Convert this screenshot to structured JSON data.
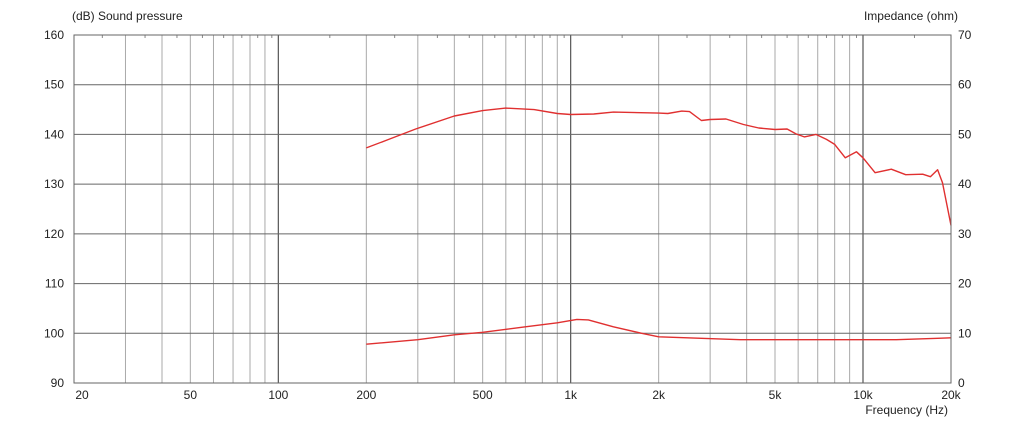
{
  "chart_data": {
    "type": "line",
    "left_axis_title": "(dB)  Sound pressure",
    "right_axis_title": "Impedance (ohm)",
    "xlabel": "Frequency  (Hz)",
    "x_scale": "log",
    "xlim": [
      20,
      20000
    ],
    "ylim_left": [
      90,
      160
    ],
    "ylim_right": [
      0,
      70
    ],
    "grid": true,
    "x_tick_labels": [
      {
        "value": 20,
        "label": "20"
      },
      {
        "value": 50,
        "label": "50"
      },
      {
        "value": 100,
        "label": "100"
      },
      {
        "value": 200,
        "label": "200"
      },
      {
        "value": 500,
        "label": "500"
      },
      {
        "value": 1000,
        "label": "1k"
      },
      {
        "value": 2000,
        "label": "2k"
      },
      {
        "value": 5000,
        "label": "5k"
      },
      {
        "value": 10000,
        "label": "10k"
      },
      {
        "value": 20000,
        "label": "20k"
      }
    ],
    "y_left_ticks": [
      "90",
      "100",
      "110",
      "120",
      "130",
      "140",
      "150",
      "160"
    ],
    "y_right_ticks": [
      "0",
      "10",
      "20",
      "30",
      "40",
      "50",
      "60",
      "70"
    ],
    "line_color": "#e03030",
    "series": [
      {
        "axis": "left",
        "x": [
          200,
          241,
          295,
          400,
          500,
          600,
          750,
          900,
          1000,
          1200,
          1400,
          2000,
          2150,
          2400,
          2550,
          2800,
          3000,
          3400,
          3900,
          4400,
          5000,
          5500,
          5900,
          6300,
          6900,
          7500,
          8000,
          8700,
          9500,
          10000,
          11000,
          12500,
          14000,
          16000,
          17000,
          18000,
          18700,
          20000
        ],
        "y": [
          137.3,
          139.1,
          141.1,
          143.7,
          144.8,
          145.3,
          145,
          144.2,
          144,
          144.1,
          144.5,
          144.3,
          144.2,
          144.7,
          144.6,
          142.8,
          143,
          143.1,
          142,
          141.3,
          141,
          141.1,
          140.1,
          139.5,
          140,
          139,
          138,
          135.3,
          136.5,
          135.3,
          132.3,
          133,
          131.9,
          132,
          131.5,
          132.9,
          130.3,
          121.7
        ]
      },
      {
        "axis": "right",
        "x": [
          200,
          300,
          400,
          500,
          700,
          900,
          1050,
          1150,
          1400,
          1750,
          2000,
          2800,
          3800,
          13000,
          18000,
          20000
        ],
        "y": [
          7.8,
          8.7,
          9.7,
          10.2,
          11.3,
          12.1,
          12.8,
          12.7,
          11.3,
          10,
          9.3,
          9,
          8.7,
          8.7,
          9,
          9.1
        ]
      }
    ]
  }
}
